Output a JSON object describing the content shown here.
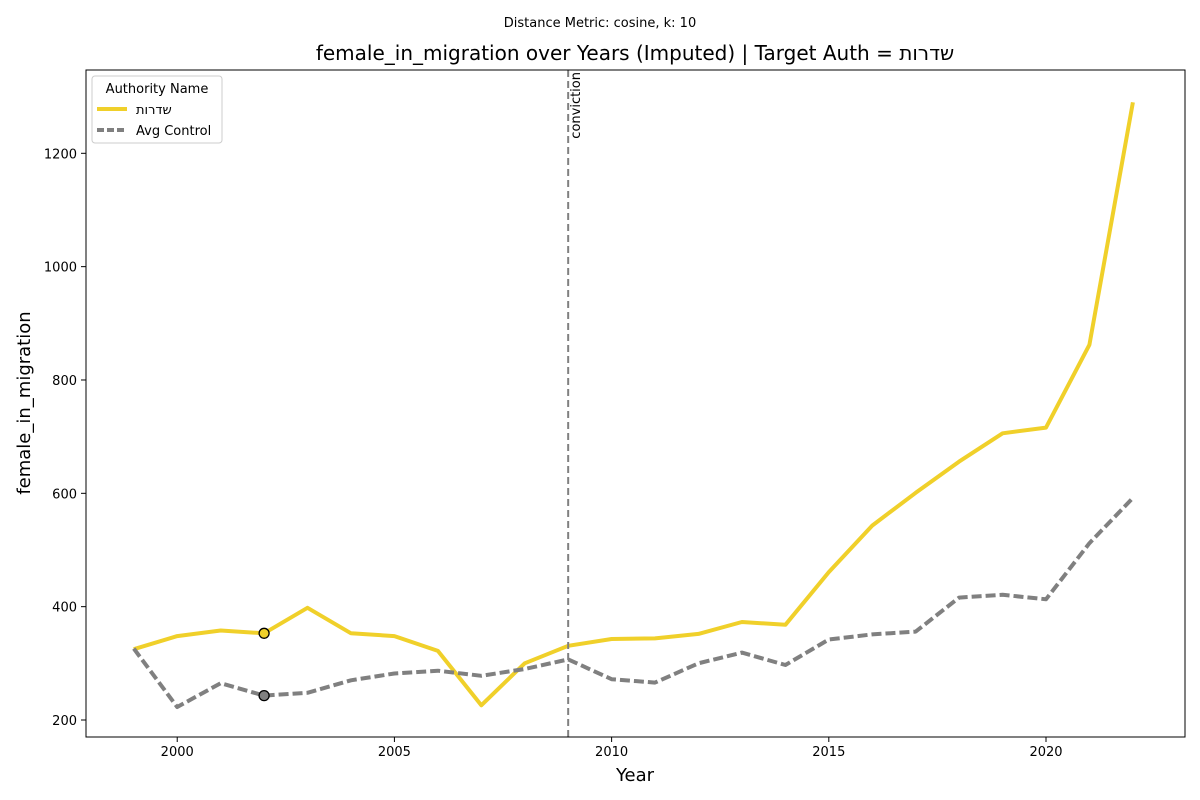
{
  "chart_data": {
    "type": "line",
    "suptitle": "Distance Metric: cosine, k: 10",
    "title": "female_in_migration over Years (Imputed) | Target Auth = שדרות",
    "xlabel": "Year",
    "ylabel": "female_in_migration",
    "xlim": [
      1997.9,
      2023.2
    ],
    "ylim": [
      170,
      1347
    ],
    "x_ticks": [
      2000,
      2005,
      2010,
      2015,
      2020
    ],
    "y_ticks": [
      200,
      400,
      600,
      800,
      1000,
      1200
    ],
    "grid": false,
    "legend": {
      "title": "Authority Name",
      "placement": "top-left"
    },
    "x": [
      1999,
      2000,
      2001,
      2002,
      2003,
      2004,
      2005,
      2006,
      2007,
      2008,
      2009,
      2010,
      2011,
      2012,
      2013,
      2014,
      2015,
      2016,
      2017,
      2018,
      2019,
      2020,
      2021,
      2022
    ],
    "series": [
      {
        "name": "שדרות",
        "color": "#f0d02a",
        "style": "solid",
        "values": [
          325,
          348,
          358,
          353,
          398,
          353,
          348,
          322,
          226,
          300,
          331,
          343,
          344,
          352,
          373,
          368,
          461,
          543,
          601,
          656,
          706,
          716,
          862,
          1290
        ]
      },
      {
        "name": "Avg Control",
        "color": "#808080",
        "style": "dashed",
        "values": [
          326,
          223,
          265,
          243,
          248,
          270,
          282,
          287,
          278,
          290,
          307,
          272,
          266,
          300,
          319,
          297,
          342,
          351,
          356,
          416,
          421,
          413,
          512,
          592
        ]
      }
    ],
    "markers": [
      {
        "series": "שדרות",
        "x": 2002,
        "y": 353,
        "color": "#f0d02a"
      },
      {
        "series": "Avg Control",
        "x": 2002,
        "y": 243,
        "color": "#808080"
      }
    ],
    "vline": {
      "x": 2009,
      "label": "conviction",
      "color": "#808080"
    }
  }
}
